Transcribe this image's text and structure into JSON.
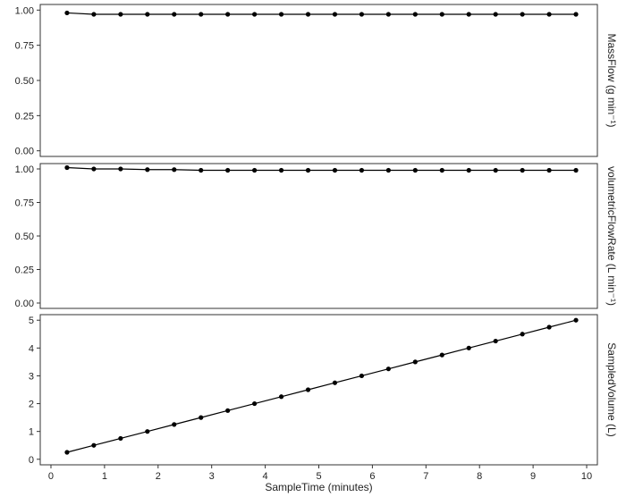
{
  "chart_data": {
    "type": "line",
    "xlabel": "SampleTime (minutes)",
    "xlim": [
      -0.2,
      10.2
    ],
    "xticks": [
      0,
      1,
      2,
      3,
      4,
      5,
      6,
      7,
      8,
      9,
      10
    ],
    "x": [
      0.3,
      0.8,
      1.3,
      1.8,
      2.3,
      2.8,
      3.3,
      3.8,
      4.3,
      4.8,
      5.3,
      5.8,
      6.3,
      6.8,
      7.3,
      7.8,
      8.3,
      8.8,
      9.3,
      9.8
    ],
    "panels": [
      {
        "strip_label": "MassFlow (g min⁻¹)",
        "ylim": [
          -0.04,
          1.04
        ],
        "yticks": [
          0.0,
          0.25,
          0.5,
          0.75,
          1.0
        ],
        "ytick_labels": [
          "0.00",
          "0.25",
          "0.50",
          "0.75",
          "1.00"
        ],
        "values": [
          0.98,
          0.97,
          0.97,
          0.97,
          0.97,
          0.97,
          0.97,
          0.97,
          0.97,
          0.97,
          0.97,
          0.97,
          0.97,
          0.97,
          0.97,
          0.97,
          0.97,
          0.97,
          0.97,
          0.97
        ]
      },
      {
        "strip_label": "volumetricFlowRate (L min⁻¹)",
        "ylim": [
          -0.04,
          1.04
        ],
        "yticks": [
          0.0,
          0.25,
          0.5,
          0.75,
          1.0
        ],
        "ytick_labels": [
          "0.00",
          "0.25",
          "0.50",
          "0.75",
          "1.00"
        ],
        "values": [
          1.01,
          1.0,
          1.0,
          0.995,
          0.995,
          0.99,
          0.99,
          0.99,
          0.99,
          0.99,
          0.99,
          0.99,
          0.99,
          0.99,
          0.99,
          0.99,
          0.99,
          0.99,
          0.99,
          0.99
        ]
      },
      {
        "strip_label": "SampledVolume (L)",
        "ylim": [
          -0.2,
          5.2
        ],
        "yticks": [
          0,
          1,
          2,
          3,
          4,
          5
        ],
        "ytick_labels": [
          "0",
          "1",
          "2",
          "3",
          "4",
          "5"
        ],
        "values": [
          0.25,
          0.5,
          0.75,
          1.0,
          1.25,
          1.5,
          1.75,
          2.0,
          2.25,
          2.5,
          2.75,
          3.0,
          3.25,
          3.5,
          3.75,
          4.0,
          4.25,
          4.5,
          4.75,
          5.0
        ]
      }
    ],
    "colors": {
      "line": "#000000",
      "point": "#000000",
      "frame": "#333333",
      "text": "#222222"
    }
  }
}
